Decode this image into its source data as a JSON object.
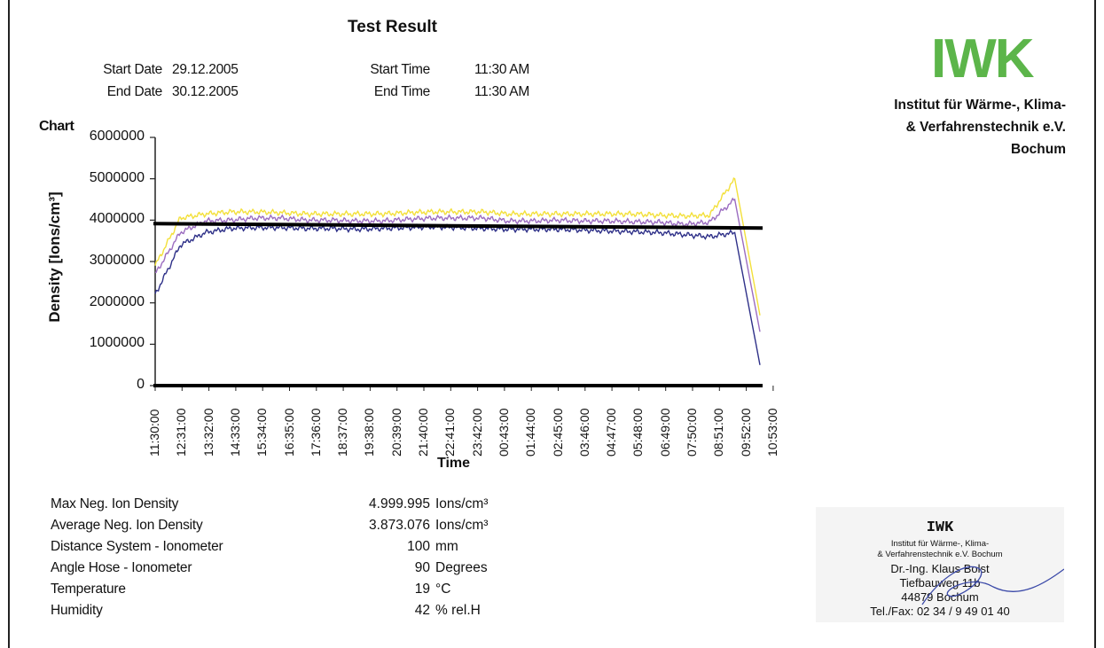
{
  "title": "Test Result",
  "header": {
    "start_date_label": "Start Date",
    "start_date": "29.12.2005",
    "end_date_label": "End Date",
    "end_date": "30.12.2005",
    "start_time_label": "Start Time",
    "start_time": "11:30 AM",
    "end_time_label": "End Time",
    "end_time": "11:30 AM"
  },
  "institute": {
    "logo": "IWK",
    "line1": "Institut für Wärme-, Klima-",
    "line2": "& Verfahrenstechnik e.V.",
    "line3": "Bochum"
  },
  "chart_label": "Chart",
  "chart_data": {
    "type": "line",
    "title": "",
    "xlabel": "Time",
    "ylabel": "Density [Ions/cm³]",
    "ylim": [
      0,
      6000000
    ],
    "yticks": [
      "0",
      "1000000",
      "2000000",
      "3000000",
      "4000000",
      "5000000",
      "6000000"
    ],
    "xticks": [
      "11:30:00",
      "12:31:00",
      "13:32:00",
      "14:33:00",
      "15:34:00",
      "16:35:00",
      "17:36:00",
      "18:37:00",
      "19:38:00",
      "20:39:00",
      "21:40:00",
      "22:41:00",
      "23:42:00",
      "00:43:00",
      "01:44:00",
      "02:45:00",
      "03:46:00",
      "04:47:00",
      "05:48:00",
      "06:49:00",
      "07:50:00",
      "08:51:00",
      "09:52:00",
      "10:53:00"
    ],
    "average_line": 3873076,
    "series": [
      {
        "color": "#f3e03a",
        "values": [
          2900000,
          4050000,
          4150000,
          4200000,
          4200000,
          4180000,
          4150000,
          4150000,
          4150000,
          4150000,
          4180000,
          4200000,
          4200000,
          4200000,
          4150000,
          4150000,
          4150000,
          4150000,
          4150000,
          4150000,
          4120000,
          4100000,
          4120000,
          4999995,
          1700000
        ]
      },
      {
        "color": "#9b6cc0",
        "values": [
          2700000,
          3700000,
          3980000,
          4000000,
          4050000,
          4050000,
          4000000,
          4000000,
          3980000,
          3980000,
          4020000,
          4050000,
          4050000,
          4050000,
          3980000,
          3980000,
          4000000,
          3980000,
          3980000,
          3960000,
          3950000,
          3900000,
          3950000,
          4500000,
          1300000
        ]
      },
      {
        "color": "#2e3088",
        "values": [
          2200000,
          3400000,
          3700000,
          3800000,
          3820000,
          3820000,
          3800000,
          3800000,
          3780000,
          3800000,
          3820000,
          3840000,
          3820000,
          3800000,
          3780000,
          3780000,
          3780000,
          3760000,
          3740000,
          3720000,
          3700000,
          3650000,
          3600000,
          3700000,
          500000
        ]
      }
    ]
  },
  "stats": [
    {
      "label": "Max Neg. Ion Density",
      "value": "4.999.995",
      "unit": "Ions/cm³"
    },
    {
      "label": "Average Neg. Ion Density",
      "value": "3.873.076",
      "unit": "Ions/cm³"
    },
    {
      "label": "Distance System  -  Ionometer",
      "value": "100",
      "unit": "mm"
    },
    {
      "label": "Angle Hose - Ionometer",
      "value": "90",
      "unit": "Degrees"
    },
    {
      "label": "Temperature",
      "value": "19",
      "unit": "°C"
    },
    {
      "label": "Humidity",
      "value": "42",
      "unit": "% rel.H"
    }
  ],
  "stamp": {
    "title": "IWK",
    "line1": "Institut für Wärme-, Klima-",
    "line2": "& Verfahrenstechnik e.V. Bochum",
    "line3": "Dr.-Ing. Klaus Bolst",
    "line4": "Tiefbauweg 11b",
    "line5": "44879 Bochum",
    "line6": "Tel./Fax: 02 34 / 9 49 01 40"
  }
}
